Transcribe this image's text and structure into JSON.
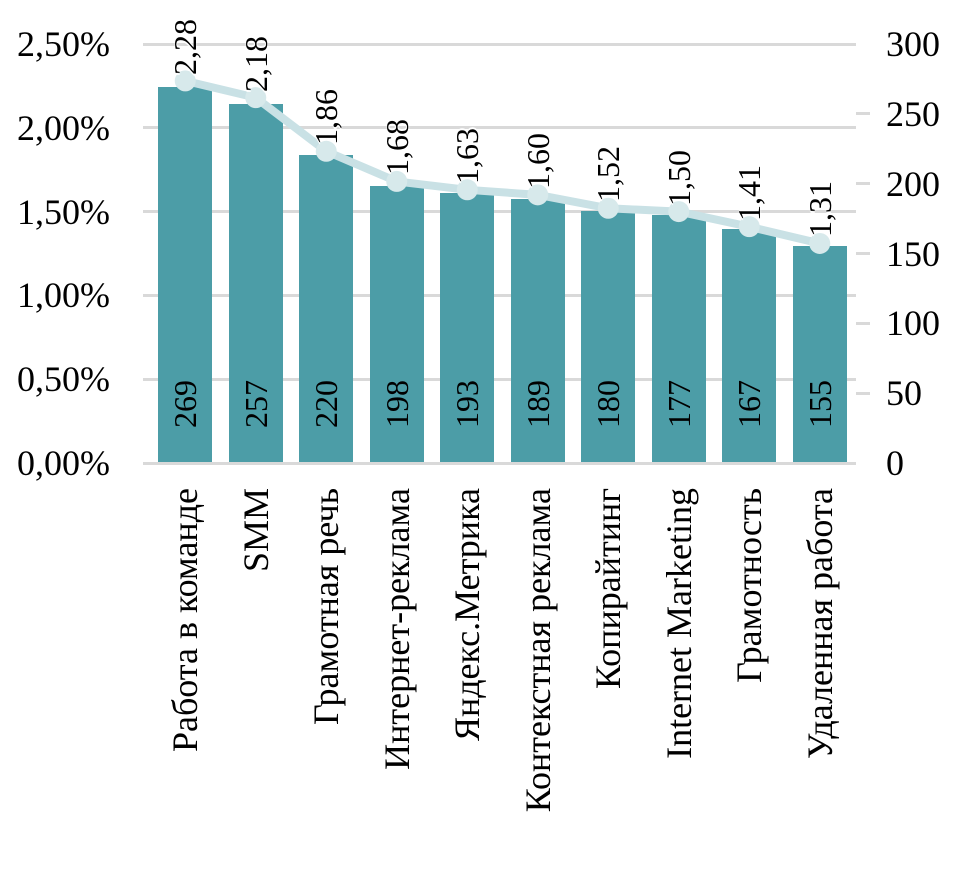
{
  "chart_data": {
    "type": "combo-bar-line",
    "title": "",
    "categories": [
      "Работа в команде",
      "SMM",
      "Грамотная речь",
      "Интернет-реклама",
      "Яндекс.Метрика",
      "Контекстная реклама",
      "Копирайтинг",
      "Internet Marketing",
      "Грамотность",
      "Удаленная работа"
    ],
    "series": [
      {
        "name": "count",
        "type": "bar",
        "axis": "right",
        "values": [
          269,
          257,
          220,
          198,
          193,
          189,
          180,
          177,
          167,
          155
        ],
        "labels": [
          "269",
          "257",
          "220",
          "198",
          "193",
          "189",
          "180",
          "177",
          "167",
          "155"
        ]
      },
      {
        "name": "percent",
        "type": "line",
        "axis": "left",
        "values": [
          2.28,
          2.18,
          1.86,
          1.68,
          1.63,
          1.6,
          1.52,
          1.5,
          1.41,
          1.31
        ],
        "labels": [
          "2,28",
          "2,18",
          "1,86",
          "1,68",
          "1,63",
          "1,60",
          "1,52",
          "1,50",
          "1,41",
          "1,31"
        ]
      }
    ],
    "left_axis": {
      "min": 0,
      "max": 2.5,
      "ticks": [
        "2,50%",
        "2,00%",
        "1,50%",
        "1,00%",
        "0,50%",
        "0,00%"
      ]
    },
    "right_axis": {
      "min": 0,
      "max": 300,
      "ticks": [
        "300",
        "250",
        "200",
        "150",
        "100",
        "50",
        "0"
      ]
    },
    "grid": true,
    "legend": false,
    "colors": {
      "bar": "#4c9da7",
      "line": "#c9e1e5",
      "marker": "#d7e9eb",
      "gridline": "#d9d9d9",
      "text": "#000000",
      "background": "#ffffff"
    }
  }
}
